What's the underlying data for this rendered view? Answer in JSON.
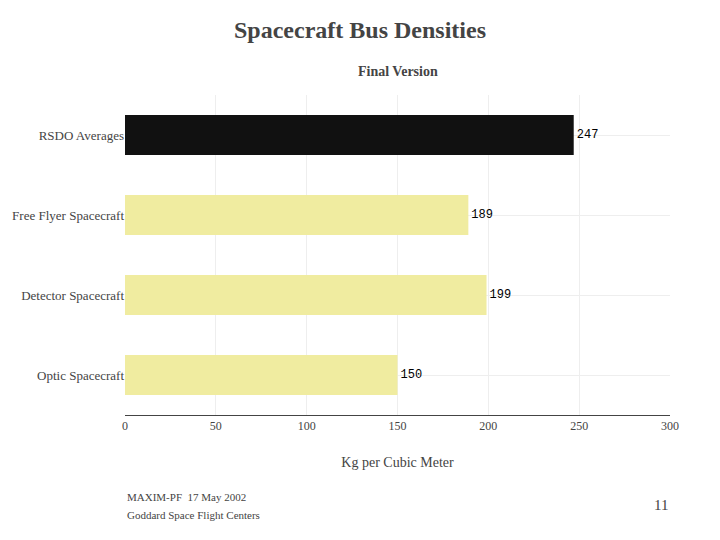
{
  "chart_data": {
    "type": "bar",
    "orientation": "horizontal",
    "title": "Spacecraft Bus Densities",
    "subtitle": "Final Version",
    "categories": [
      "RSDO Averages",
      "Free Flyer Spacecraft",
      "Detector Spacecraft",
      "Optic Spacecraft"
    ],
    "values": [
      247,
      189,
      199,
      150
    ],
    "colors": [
      "#111111",
      "#f0eca0",
      "#f0eca0",
      "#f0eca0"
    ],
    "xlabel": "Kg per Cubic Meter",
    "xlim": [
      0,
      300
    ],
    "xticks": [
      0,
      50,
      100,
      150,
      200,
      250,
      300
    ],
    "grid": true,
    "data_labels": true,
    "annotations": [
      "MAXIM-PF  17 May 2002",
      "Goddard Space Flight Centers",
      "11"
    ]
  }
}
